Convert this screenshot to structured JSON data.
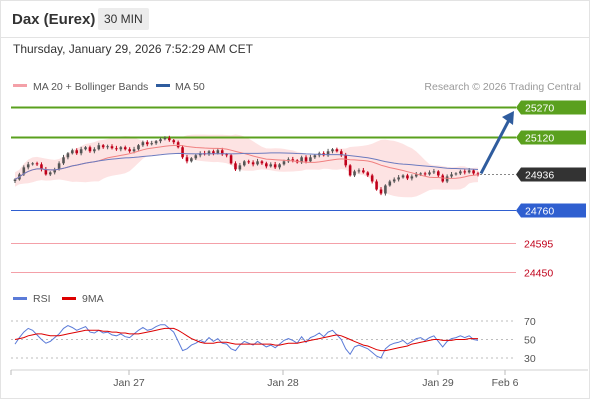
{
  "header": {
    "instrument": "Dax (Eurex)",
    "timeframe": "30 MIN",
    "datetime": "Thursday, January 29, 2026 7:52:29 AM CET"
  },
  "legend": {
    "ma20_label": "MA 20 + Bollinger Bands",
    "ma50_label": "MA 50",
    "credit": "Research © 2026 Trading Central",
    "rsi_label": "RSI",
    "ma9_label": "9MA"
  },
  "colors": {
    "up_candle": "#555555",
    "down_candle": "#c0001a",
    "bollinger_fill": "#fde3e3",
    "ma20": "#f08080",
    "ma50": "#6c7bbf",
    "resistance": "#5aa01e",
    "pivot": "#2f5fd0",
    "support": "#f4a0a8",
    "arrow": "#2f5c9e",
    "rsi": "#5b7bd8",
    "rsi_ma": "#dd0000"
  },
  "chart_data": [
    {
      "type": "candlestick",
      "title": "",
      "x_tick_labels": [
        "Jan 27",
        "Jan 28",
        "Jan 29",
        "Feb 6"
      ],
      "ylim": [
        24400,
        25320
      ],
      "levels": [
        {
          "value": 25270,
          "label": "25270",
          "kind": "resistance"
        },
        {
          "value": 25120,
          "label": "25120",
          "kind": "resistance"
        },
        {
          "value": 24936,
          "label": "24936",
          "kind": "last_price"
        },
        {
          "value": 24760,
          "label": "24760",
          "kind": "pivot"
        },
        {
          "value": 24595,
          "label": "24595",
          "kind": "support"
        },
        {
          "value": 24450,
          "label": "24450",
          "kind": "support"
        }
      ],
      "forecast_arrow": {
        "from": 24940,
        "to": 25270
      },
      "close": [
        24910,
        24935,
        24970,
        24985,
        24990,
        24985,
        24960,
        24935,
        24945,
        24960,
        24990,
        25020,
        25040,
        25055,
        25040,
        25060,
        25070,
        25050,
        25060,
        25080,
        25070,
        25075,
        25065,
        25060,
        25070,
        25060,
        25050,
        25060,
        25080,
        25095,
        25085,
        25090,
        25100,
        25110,
        25115,
        25105,
        25095,
        25070,
        25020,
        25000,
        25015,
        25030,
        25040,
        25035,
        25050,
        25040,
        25055,
        25035,
        25030,
        24990,
        24960,
        24980,
        25000,
        24995,
        24985,
        25000,
        24990,
        24975,
        24985,
        24970,
        24985,
        25000,
        25010,
        25005,
        24995,
        25020,
        25000,
        25020,
        25030,
        25040,
        25030,
        25050,
        25060,
        25050,
        25030,
        24980,
        24930,
        24950,
        24955,
        24945,
        24930,
        24900,
        24860,
        24840,
        24880,
        24900,
        24910,
        24920,
        24930,
        24915,
        24925,
        24935,
        24940,
        24935,
        24945,
        24950,
        24930,
        24900,
        24925,
        24935,
        24940,
        24950,
        24945,
        24955,
        24940,
        24935
      ]
    },
    {
      "type": "line",
      "title": "",
      "series_names": [
        "RSI",
        "9MA"
      ],
      "yticks": [
        70,
        50,
        30
      ],
      "ylim": [
        20,
        80
      ],
      "rsi": [
        45,
        52,
        58,
        62,
        60,
        55,
        50,
        46,
        48,
        52,
        56,
        62,
        65,
        63,
        60,
        62,
        64,
        58,
        57,
        60,
        57,
        58,
        55,
        54,
        56,
        53,
        52,
        56,
        60,
        63,
        60,
        61,
        64,
        66,
        66,
        62,
        58,
        48,
        38,
        40,
        44,
        46,
        49,
        47,
        52,
        48,
        51,
        46,
        45,
        40,
        38,
        44,
        48,
        46,
        44,
        48,
        45,
        42,
        44,
        41,
        45,
        49,
        51,
        49,
        46,
        53,
        47,
        52,
        54,
        57,
        53,
        58,
        60,
        55,
        50,
        40,
        34,
        42,
        44,
        42,
        40,
        36,
        32,
        30,
        40,
        44,
        46,
        47,
        49,
        45,
        48,
        51,
        52,
        49,
        52,
        54,
        48,
        42,
        48,
        51,
        52,
        54,
        52,
        54,
        50,
        49
      ],
      "rsi_ma": [
        50,
        51,
        52,
        54,
        55,
        56,
        56,
        55,
        54,
        54,
        54,
        55,
        56,
        57,
        58,
        59,
        60,
        60,
        60,
        60,
        59,
        59,
        58,
        58,
        57,
        57,
        56,
        56,
        56,
        57,
        58,
        59,
        60,
        61,
        62,
        62,
        62,
        60,
        57,
        54,
        51,
        49,
        47,
        46,
        46,
        46,
        47,
        47,
        47,
        46,
        45,
        45,
        45,
        45,
        45,
        45,
        45,
        45,
        45,
        44,
        44,
        45,
        46,
        46,
        46,
        47,
        48,
        49,
        50,
        51,
        52,
        53,
        54,
        55,
        54,
        52,
        50,
        48,
        46,
        44,
        43,
        41,
        39,
        38,
        38,
        39,
        40,
        41,
        42,
        43,
        45,
        46,
        47,
        48,
        49,
        50,
        50,
        49,
        49,
        49,
        50,
        50,
        50,
        51,
        51,
        51
      ]
    }
  ]
}
